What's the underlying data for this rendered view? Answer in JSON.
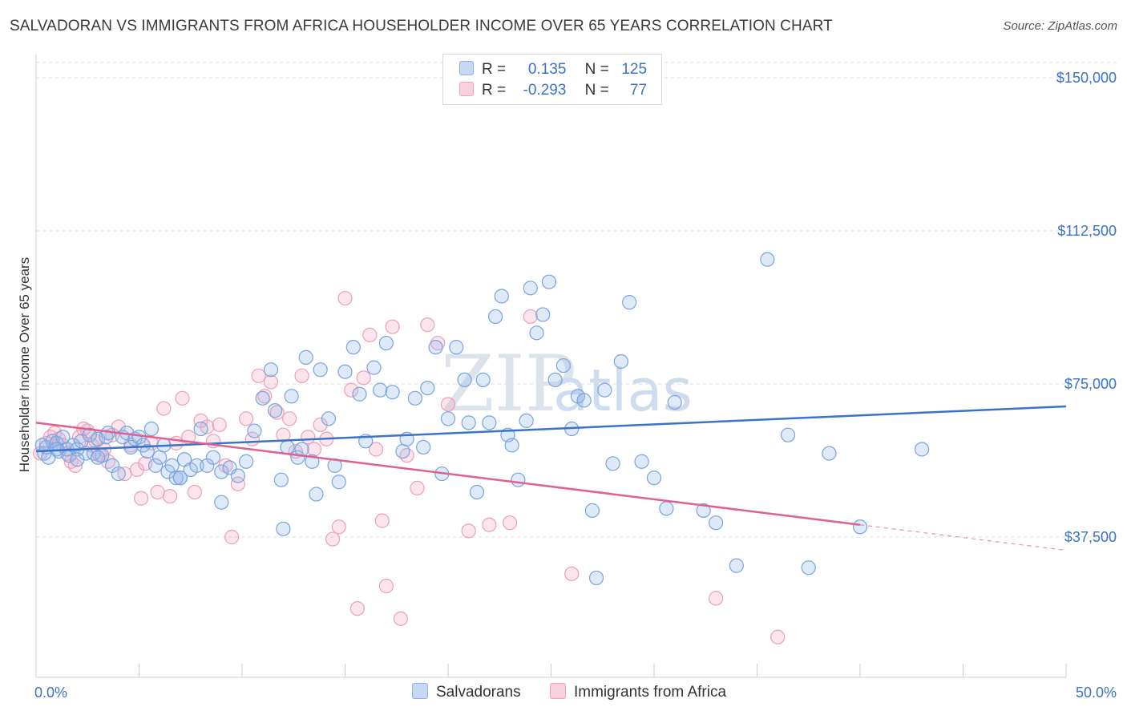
{
  "header": {
    "title": "SALVADORAN VS IMMIGRANTS FROM AFRICA HOUSEHOLDER INCOME OVER 65 YEARS CORRELATION CHART",
    "source": "Source: ZipAtlas.com"
  },
  "watermark": {
    "zip": "ZIP",
    "atlas": "atlas"
  },
  "legend": {
    "rows": [
      {
        "r_label": "R =",
        "r_value": "0.135",
        "n_label": "N =",
        "n_value": "125",
        "color": "#a9c4ec"
      },
      {
        "r_label": "R =",
        "r_value": "-0.293",
        "n_label": "N =",
        "n_value": "77",
        "color": "#f4b6c9"
      }
    ]
  },
  "bottom_legend": {
    "series1": "Salvadorans",
    "series2": "Immigrants from Africa"
  },
  "chart_data": {
    "type": "scatter",
    "title": "SALVADORAN VS IMMIGRANTS FROM AFRICA HOUSEHOLDER INCOME OVER 65 YEARS CORRELATION CHART",
    "xlabel": "",
    "ylabel": "Householder Income Over 65 years",
    "x_tick_labels": [
      "0.0%",
      "50.0%"
    ],
    "y_tick_labels": [
      "$37,500",
      "$75,000",
      "$112,500",
      "$150,000"
    ],
    "y_ticks": [
      37500,
      75000,
      112500,
      150000
    ],
    "xlim": [
      0,
      50
    ],
    "ylim": [
      0,
      155000
    ],
    "grid": "horizontal dashed",
    "colors": {
      "salvadorans": "#3b73c7",
      "africa": "#e0608f"
    },
    "series": [
      {
        "name": "Salvadorans",
        "trend": {
          "x": [
            0,
            50
          ],
          "y": [
            58500,
            69500
          ]
        },
        "points": [
          [
            0.3,
            60000
          ],
          [
            0.4,
            58000
          ],
          [
            0.5,
            59500
          ],
          [
            0.6,
            57000
          ],
          [
            0.8,
            61000
          ],
          [
            1.0,
            60500
          ],
          [
            1.1,
            58500
          ],
          [
            1.3,
            62000
          ],
          [
            1.5,
            59000
          ],
          [
            1.6,
            57500
          ],
          [
            1.8,
            60000
          ],
          [
            2.0,
            59000
          ],
          [
            2.2,
            61000
          ],
          [
            2.4,
            58000
          ],
          [
            2.6,
            62500
          ],
          [
            2.8,
            58000
          ],
          [
            3.0,
            61500
          ],
          [
            3.2,
            57500
          ],
          [
            3.4,
            62000
          ],
          [
            3.5,
            63000
          ],
          [
            3.7,
            55000
          ],
          [
            4.0,
            53000
          ],
          [
            4.2,
            62000
          ],
          [
            4.4,
            63000
          ],
          [
            4.6,
            59500
          ],
          [
            4.8,
            61500
          ],
          [
            5.0,
            62000
          ],
          [
            5.2,
            60000
          ],
          [
            5.4,
            58500
          ],
          [
            5.6,
            64000
          ],
          [
            5.8,
            55000
          ],
          [
            6.0,
            57000
          ],
          [
            6.2,
            60000
          ],
          [
            6.4,
            53500
          ],
          [
            6.6,
            55000
          ],
          [
            6.8,
            52000
          ],
          [
            7.0,
            52000
          ],
          [
            7.2,
            56500
          ],
          [
            7.5,
            54000
          ],
          [
            7.8,
            55000
          ],
          [
            8.0,
            64000
          ],
          [
            8.3,
            55000
          ],
          [
            8.6,
            57000
          ],
          [
            9.0,
            53500
          ],
          [
            9.4,
            54500
          ],
          [
            9.8,
            52500
          ],
          [
            10.2,
            56000
          ],
          [
            10.6,
            63500
          ],
          [
            11.0,
            71500
          ],
          [
            11.4,
            78500
          ],
          [
            11.6,
            68500
          ],
          [
            11.9,
            51500
          ],
          [
            12.2,
            59500
          ],
          [
            12.4,
            72000
          ],
          [
            12.7,
            57000
          ],
          [
            12.9,
            59000
          ],
          [
            13.1,
            81500
          ],
          [
            13.4,
            56000
          ],
          [
            13.6,
            48000
          ],
          [
            13.8,
            78500
          ],
          [
            14.2,
            66500
          ],
          [
            14.5,
            55000
          ],
          [
            14.7,
            51000
          ],
          [
            15.0,
            78000
          ],
          [
            15.4,
            84000
          ],
          [
            15.7,
            72500
          ],
          [
            16.0,
            61000
          ],
          [
            16.4,
            79000
          ],
          [
            16.7,
            73500
          ],
          [
            17.0,
            85000
          ],
          [
            17.3,
            73000
          ],
          [
            17.8,
            58500
          ],
          [
            18.0,
            61500
          ],
          [
            18.4,
            71500
          ],
          [
            18.8,
            59500
          ],
          [
            19.0,
            74000
          ],
          [
            19.4,
            84000
          ],
          [
            19.7,
            53000
          ],
          [
            20.0,
            66500
          ],
          [
            20.4,
            84000
          ],
          [
            20.8,
            76000
          ],
          [
            21.0,
            65500
          ],
          [
            21.4,
            48500
          ],
          [
            21.7,
            76000
          ],
          [
            22.0,
            65500
          ],
          [
            22.3,
            91500
          ],
          [
            22.6,
            96500
          ],
          [
            22.9,
            62500
          ],
          [
            23.1,
            60000
          ],
          [
            23.4,
            51500
          ],
          [
            23.8,
            66000
          ],
          [
            24.0,
            98500
          ],
          [
            24.3,
            87500
          ],
          [
            24.6,
            92000
          ],
          [
            24.9,
            100000
          ],
          [
            25.2,
            76000
          ],
          [
            25.6,
            79500
          ],
          [
            26.0,
            64000
          ],
          [
            26.3,
            72000
          ],
          [
            26.6,
            71000
          ],
          [
            27.0,
            44000
          ],
          [
            27.2,
            27500
          ],
          [
            27.6,
            73500
          ],
          [
            28.0,
            55500
          ],
          [
            28.4,
            80500
          ],
          [
            28.8,
            95000
          ],
          [
            29.4,
            56000
          ],
          [
            30.0,
            52000
          ],
          [
            30.6,
            44500
          ],
          [
            31.0,
            70500
          ],
          [
            32.4,
            44000
          ],
          [
            33.0,
            41000
          ],
          [
            34.0,
            30500
          ],
          [
            35.5,
            105500
          ],
          [
            36.5,
            62500
          ],
          [
            37.5,
            30000
          ],
          [
            38.5,
            58000
          ],
          [
            40.0,
            40000
          ],
          [
            43.0,
            59000
          ],
          [
            1.0,
            59000
          ],
          [
            2.0,
            56500
          ],
          [
            3.0,
            57000
          ],
          [
            7.0,
            52000
          ],
          [
            9.0,
            46000
          ],
          [
            12.0,
            39500
          ]
        ]
      },
      {
        "name": "Immigrants from Africa",
        "trend": {
          "x": [
            0,
            40
          ],
          "y": [
            65500,
            40500
          ]
        },
        "points": [
          [
            0.2,
            58000
          ],
          [
            0.5,
            60500
          ],
          [
            0.7,
            62000
          ],
          [
            0.9,
            63000
          ],
          [
            1.1,
            61500
          ],
          [
            1.3,
            60000
          ],
          [
            1.5,
            58000
          ],
          [
            1.7,
            56000
          ],
          [
            1.9,
            55000
          ],
          [
            2.1,
            62000
          ],
          [
            2.3,
            64000
          ],
          [
            2.5,
            63500
          ],
          [
            2.7,
            60000
          ],
          [
            2.9,
            61000
          ],
          [
            3.1,
            57500
          ],
          [
            3.3,
            59000
          ],
          [
            3.5,
            56000
          ],
          [
            3.7,
            62500
          ],
          [
            4.0,
            64500
          ],
          [
            4.3,
            53000
          ],
          [
            4.6,
            60000
          ],
          [
            4.9,
            54000
          ],
          [
            5.1,
            47000
          ],
          [
            5.3,
            55500
          ],
          [
            5.6,
            60500
          ],
          [
            5.9,
            48500
          ],
          [
            6.2,
            69000
          ],
          [
            6.5,
            47500
          ],
          [
            6.8,
            60500
          ],
          [
            7.1,
            71500
          ],
          [
            7.4,
            62000
          ],
          [
            7.7,
            48500
          ],
          [
            8.0,
            66000
          ],
          [
            8.3,
            64500
          ],
          [
            8.6,
            61000
          ],
          [
            8.9,
            65000
          ],
          [
            9.2,
            55000
          ],
          [
            9.5,
            37500
          ],
          [
            9.8,
            50500
          ],
          [
            10.2,
            66500
          ],
          [
            10.5,
            61500
          ],
          [
            10.8,
            77000
          ],
          [
            11.1,
            72000
          ],
          [
            11.4,
            75500
          ],
          [
            11.7,
            68000
          ],
          [
            12.0,
            62500
          ],
          [
            12.3,
            66500
          ],
          [
            12.6,
            58500
          ],
          [
            12.9,
            77000
          ],
          [
            13.2,
            62000
          ],
          [
            13.5,
            59000
          ],
          [
            13.8,
            65000
          ],
          [
            14.1,
            61500
          ],
          [
            14.4,
            37000
          ],
          [
            14.7,
            40000
          ],
          [
            15.0,
            96000
          ],
          [
            15.3,
            73500
          ],
          [
            15.6,
            20000
          ],
          [
            15.9,
            76500
          ],
          [
            16.2,
            87000
          ],
          [
            16.5,
            59000
          ],
          [
            16.8,
            41500
          ],
          [
            17.0,
            25500
          ],
          [
            17.3,
            89000
          ],
          [
            17.7,
            17500
          ],
          [
            18.0,
            57500
          ],
          [
            18.5,
            49500
          ],
          [
            19.0,
            89500
          ],
          [
            19.5,
            85000
          ],
          [
            20.0,
            70000
          ],
          [
            21.0,
            39000
          ],
          [
            22.0,
            40500
          ],
          [
            23.0,
            41000
          ],
          [
            24.0,
            91500
          ],
          [
            26.0,
            28500
          ],
          [
            33.0,
            22500
          ],
          [
            36.0,
            13000
          ]
        ]
      }
    ]
  }
}
